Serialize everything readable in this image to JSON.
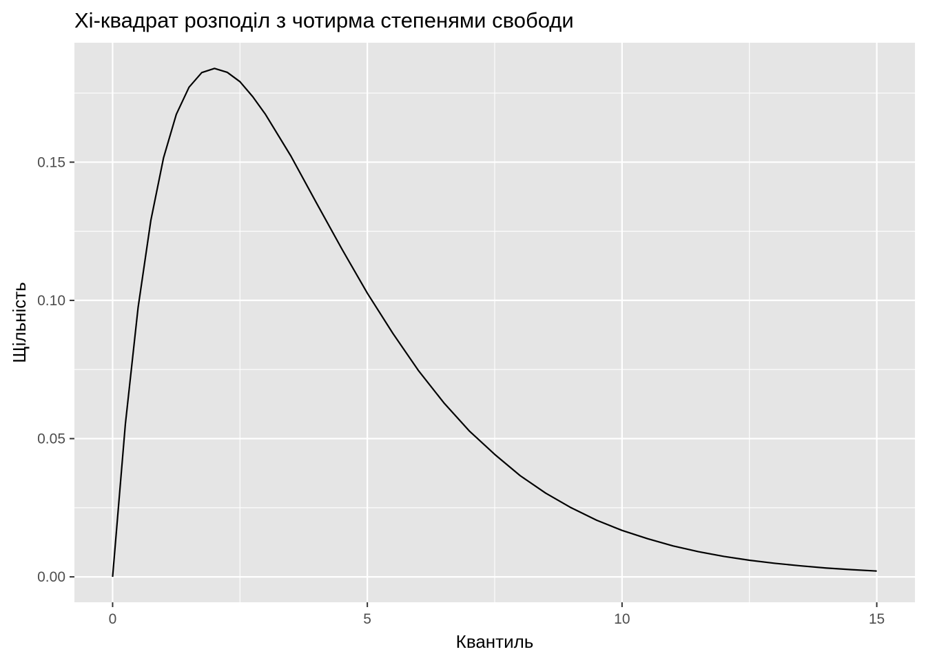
{
  "chart_data": {
    "type": "line",
    "title": "Хі-квадрат розподіл з чотирма степенями свободи",
    "xlabel": "Квантиль",
    "ylabel": "Щільність",
    "xlim": [
      -0.75,
      15.75
    ],
    "ylim": [
      -0.0092,
      0.1932
    ],
    "x_ticks": [
      0,
      5,
      10,
      15
    ],
    "x_tick_labels": [
      "0",
      "5",
      "10",
      "15"
    ],
    "y_ticks": [
      0,
      0.05,
      0.1,
      0.15
    ],
    "y_tick_labels": [
      "0.00",
      "0.05",
      "0.10",
      "0.15"
    ],
    "grid": true,
    "legend": "none",
    "colors": {
      "panel_background": "#e5e5e5",
      "grid": "#ffffff",
      "line": "#000000",
      "tick_label": "#4d4d4d",
      "tick_mark": "#333333"
    },
    "series": [
      {
        "x": [
          0,
          0.25,
          0.5,
          0.75,
          1,
          1.25,
          1.5,
          1.75,
          2,
          2.25,
          2.5,
          2.75,
          3,
          3.5,
          4,
          4.5,
          5,
          5.5,
          6,
          6.5,
          7,
          7.5,
          8,
          8.5,
          9,
          9.5,
          10,
          10.5,
          11,
          11.5,
          12,
          12.5,
          13,
          13.5,
          14,
          14.5,
          15
        ],
        "values": [
          0,
          0.0552,
          0.0974,
          0.1289,
          0.1516,
          0.1673,
          0.1771,
          0.1824,
          0.1839,
          0.1825,
          0.1791,
          0.1737,
          0.1673,
          0.1522,
          0.1353,
          0.1186,
          0.1026,
          0.0881,
          0.0747,
          0.063,
          0.0528,
          0.0443,
          0.0366,
          0.0303,
          0.025,
          0.0205,
          0.0168,
          0.0138,
          0.0112,
          0.0091,
          0.0074,
          0.006,
          0.0049,
          0.004,
          0.0032,
          0.0026,
          0.0021
        ]
      }
    ]
  }
}
